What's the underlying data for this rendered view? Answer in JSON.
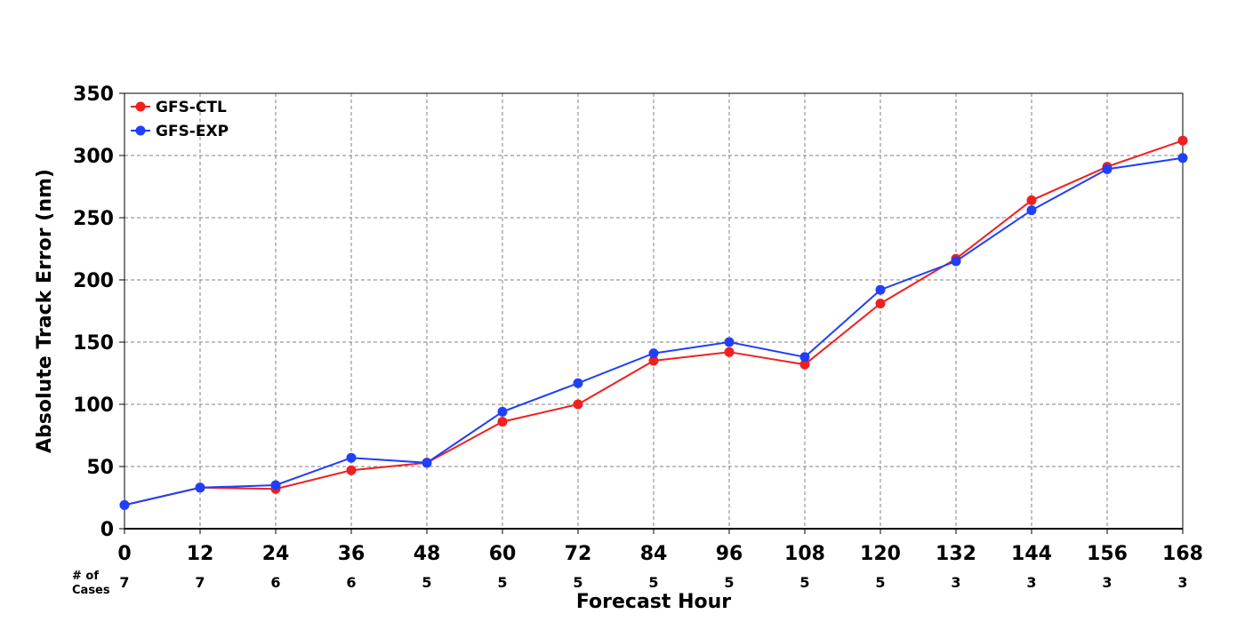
{
  "chart_data": {
    "type": "line",
    "title": "",
    "xlabel": "Forecast Hour",
    "ylabel": "Absolute Track Error (nm)",
    "xlim": [
      0,
      168
    ],
    "ylim": [
      0,
      350
    ],
    "x": [
      0,
      12,
      24,
      36,
      48,
      60,
      72,
      84,
      96,
      108,
      120,
      132,
      144,
      156,
      168
    ],
    "x_ticks": [
      "0",
      "12",
      "24",
      "36",
      "48",
      "60",
      "72",
      "84",
      "96",
      "108",
      "120",
      "132",
      "144",
      "156",
      "168"
    ],
    "y_ticks": [
      "0",
      "50",
      "100",
      "150",
      "200",
      "250",
      "300",
      "350"
    ],
    "y_tick_values": [
      0,
      50,
      100,
      150,
      200,
      250,
      300,
      350
    ],
    "grid": true,
    "legend_position": "top-left",
    "cases_label": [
      "# of",
      "Cases"
    ],
    "cases": [
      "7",
      "7",
      "6",
      "6",
      "5",
      "5",
      "5",
      "5",
      "5",
      "5",
      "5",
      "3",
      "3",
      "3",
      "3"
    ],
    "series": [
      {
        "name": "GFS-CTL",
        "color": "#f02020",
        "values": [
          19,
          33,
          32,
          47,
          53,
          86,
          100,
          135,
          142,
          132,
          181,
          217,
          264,
          291,
          312
        ]
      },
      {
        "name": "GFS-EXP",
        "color": "#2040f8",
        "values": [
          19,
          33,
          35,
          57,
          53,
          94,
          117,
          141,
          150,
          138,
          192,
          215,
          256,
          289,
          298
        ]
      }
    ]
  }
}
